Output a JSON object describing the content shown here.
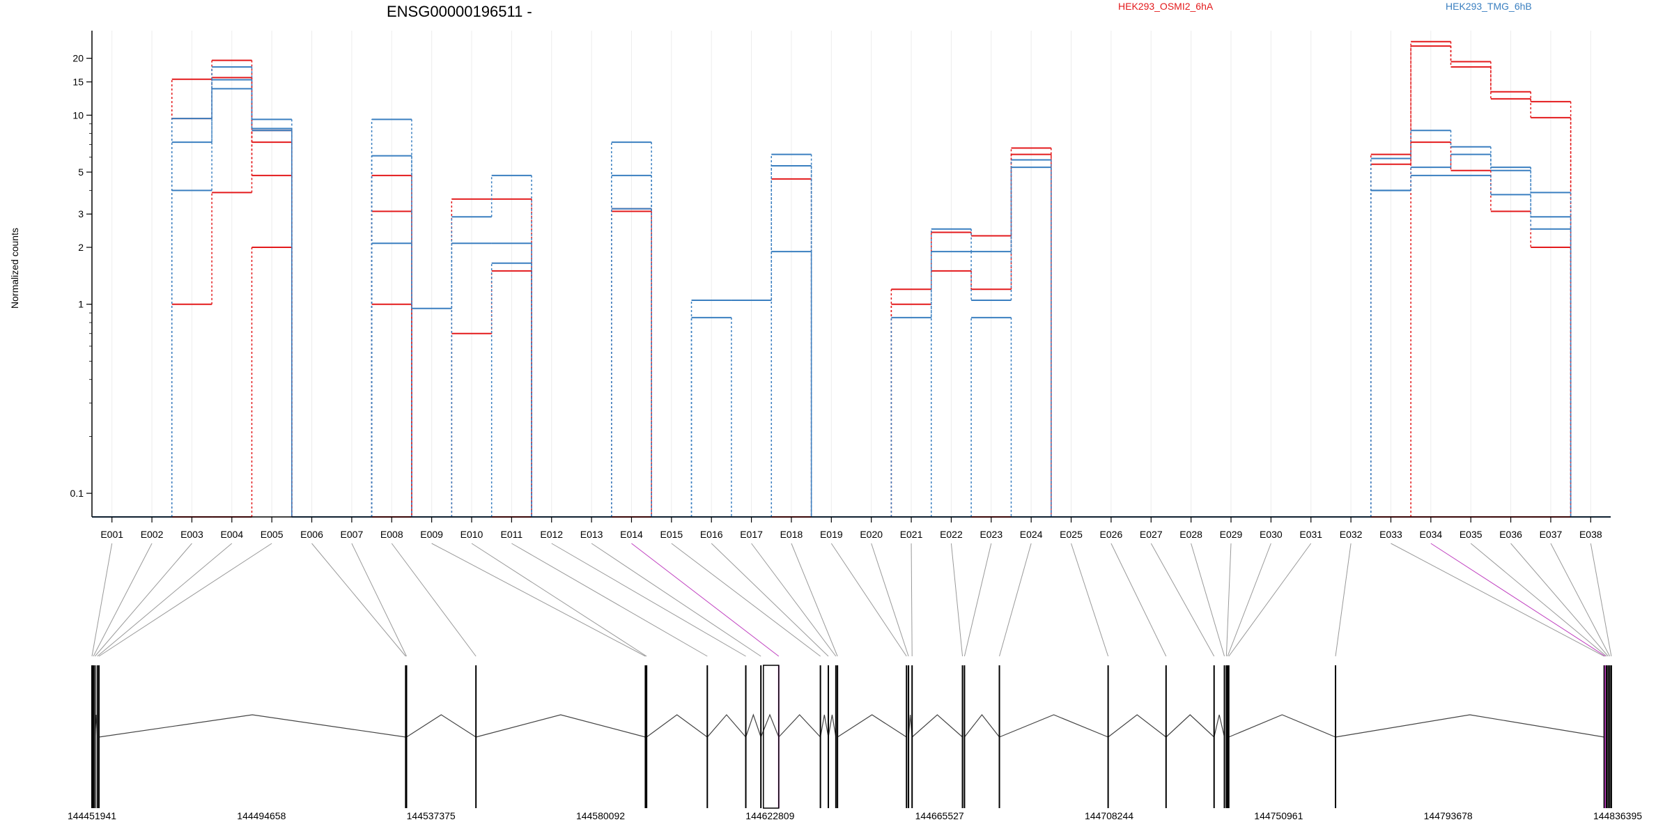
{
  "chart_data": {
    "type": "line",
    "title": "ENSG00000196511 -",
    "ylabel": "Normalized counts",
    "yscale": "log",
    "yticks": [
      "0.1",
      "1",
      "2",
      "3",
      "5",
      "10",
      "15",
      "20"
    ],
    "ylim": [
      0.075,
      28
    ],
    "zero_floor": 0.075,
    "grid": "vertical",
    "legend": [
      {
        "name": "HEK293_OSMI2_6hA",
        "color": "#e31a1c",
        "position": "top-center"
      },
      {
        "name": "HEK293_TMG_6hB",
        "color": "#3a7fc0",
        "position": "top-right"
      }
    ],
    "categories": [
      "E001",
      "E002",
      "E003",
      "E004",
      "E005",
      "E006",
      "E007",
      "E008",
      "E009",
      "E010",
      "E011",
      "E012",
      "E013",
      "E014",
      "E015",
      "E016",
      "E017",
      "E018",
      "E019",
      "E020",
      "E021",
      "E022",
      "E023",
      "E024",
      "E025",
      "E026",
      "E027",
      "E028",
      "E029",
      "E030",
      "E031",
      "E032",
      "E033",
      "E034",
      "E035",
      "E036",
      "E037",
      "E038"
    ],
    "series": [
      {
        "group": "HEK293_OSMI2_6hA",
        "color": "#e31a1c",
        "values": [
          0,
          0,
          15.5,
          19.5,
          7.2,
          0,
          0,
          4.8,
          0,
          3.6,
          3.6,
          0,
          0,
          3.2,
          0,
          0,
          0,
          4.6,
          0,
          0,
          1.2,
          2.4,
          2.3,
          6.2,
          0,
          0,
          0,
          0,
          0,
          0,
          0,
          0,
          6.2,
          24.5,
          19.2,
          13.3,
          11.8,
          0
        ]
      },
      {
        "group": "HEK293_OSMI2_6hA",
        "color": "#e31a1c",
        "values": [
          0,
          0,
          1.0,
          3.9,
          8.3,
          0,
          0,
          3.1,
          0,
          0.7,
          1.5,
          0,
          0,
          3.1,
          0,
          0,
          0,
          0,
          0,
          0,
          1.0,
          1.5,
          1.2,
          6.7,
          0,
          0,
          0,
          0,
          0,
          0,
          0,
          0,
          5.5,
          23.2,
          18.0,
          12.2,
          9.7,
          0
        ]
      },
      {
        "group": "HEK293_OSMI2_6hA",
        "color": "#e31a1c",
        "values": [
          0,
          0,
          9.6,
          15.8,
          4.8,
          0,
          0,
          1.0,
          0,
          0,
          0,
          0,
          0,
          0,
          0,
          0,
          0,
          0,
          0,
          0,
          0,
          0,
          0,
          0,
          0,
          0,
          0,
          0,
          0,
          0,
          0,
          0,
          0,
          7.2,
          5.1,
          3.1,
          2.0,
          0
        ]
      },
      {
        "group": "HEK293_OSMI2_6hA",
        "color": "#e31a1c",
        "values": [
          0,
          0,
          0,
          0,
          2.0,
          0,
          0,
          0,
          0,
          0,
          0,
          0,
          0,
          0,
          0,
          0,
          0,
          0,
          0,
          0,
          0,
          0,
          0,
          0,
          0,
          0,
          0,
          0,
          0,
          0,
          0,
          0,
          0,
          0,
          0,
          0,
          0,
          0
        ]
      },
      {
        "group": "HEK293_TMG_6hB",
        "color": "#3a7fc0",
        "values": [
          0,
          0,
          7.2,
          18.0,
          9.5,
          0,
          0,
          9.5,
          0.95,
          2.9,
          4.8,
          0,
          0,
          7.2,
          0,
          1.05,
          1.05,
          6.2,
          0,
          0,
          0,
          2.5,
          1.9,
          5.8,
          0,
          0,
          0,
          0,
          0,
          0,
          0,
          0,
          5.9,
          8.3,
          6.8,
          5.3,
          3.9,
          0
        ]
      },
      {
        "group": "HEK293_TMG_6hB",
        "color": "#3a7fc0",
        "values": [
          0,
          0,
          9.6,
          15.4,
          8.5,
          0,
          0,
          6.1,
          0,
          2.1,
          2.1,
          0,
          0,
          4.8,
          0,
          0.85,
          0,
          5.4,
          0,
          0,
          0.85,
          1.9,
          1.05,
          5.3,
          0,
          0,
          0,
          0,
          0,
          0,
          0,
          0,
          4.0,
          5.3,
          6.2,
          5.1,
          2.9,
          0
        ]
      },
      {
        "group": "HEK293_TMG_6hB",
        "color": "#3a7fc0",
        "values": [
          0,
          0,
          4.0,
          13.8,
          8.3,
          0,
          0,
          2.1,
          0,
          0,
          1.65,
          0,
          0,
          3.2,
          0,
          0,
          0,
          1.9,
          0,
          0,
          0,
          0,
          0.85,
          0,
          0,
          0,
          0,
          0,
          0,
          0,
          0,
          0,
          4.0,
          4.8,
          4.8,
          3.8,
          2.5,
          0
        ]
      }
    ],
    "xticks": [
      "144451941",
      "144494658",
      "144537375",
      "144580092",
      "144622809",
      "144665527",
      "144708244",
      "144750961",
      "144793678",
      "144836395"
    ],
    "genomic_range": [
      144451941,
      144836395
    ],
    "exon_positions": [
      144451941,
      144452300,
      144452700,
      144453300,
      144453700,
      144531000,
      144531200,
      144548700,
      144591400,
      144591700,
      144607000,
      144616700,
      144620500,
      144625000,
      144635500,
      144637500,
      144639400,
      144639800,
      144657200,
      144657700,
      144658600,
      144671300,
      144671800,
      144680600,
      144708000,
      144722600,
      144734700,
      144737300,
      144737800,
      144738100,
      144738400,
      144765300,
      144833000,
      144833300,
      144833600,
      144834000,
      144834400,
      144834800
    ],
    "highlighted_exons": [
      "E014",
      "E034"
    ],
    "highlight_color": "#c040c0"
  }
}
